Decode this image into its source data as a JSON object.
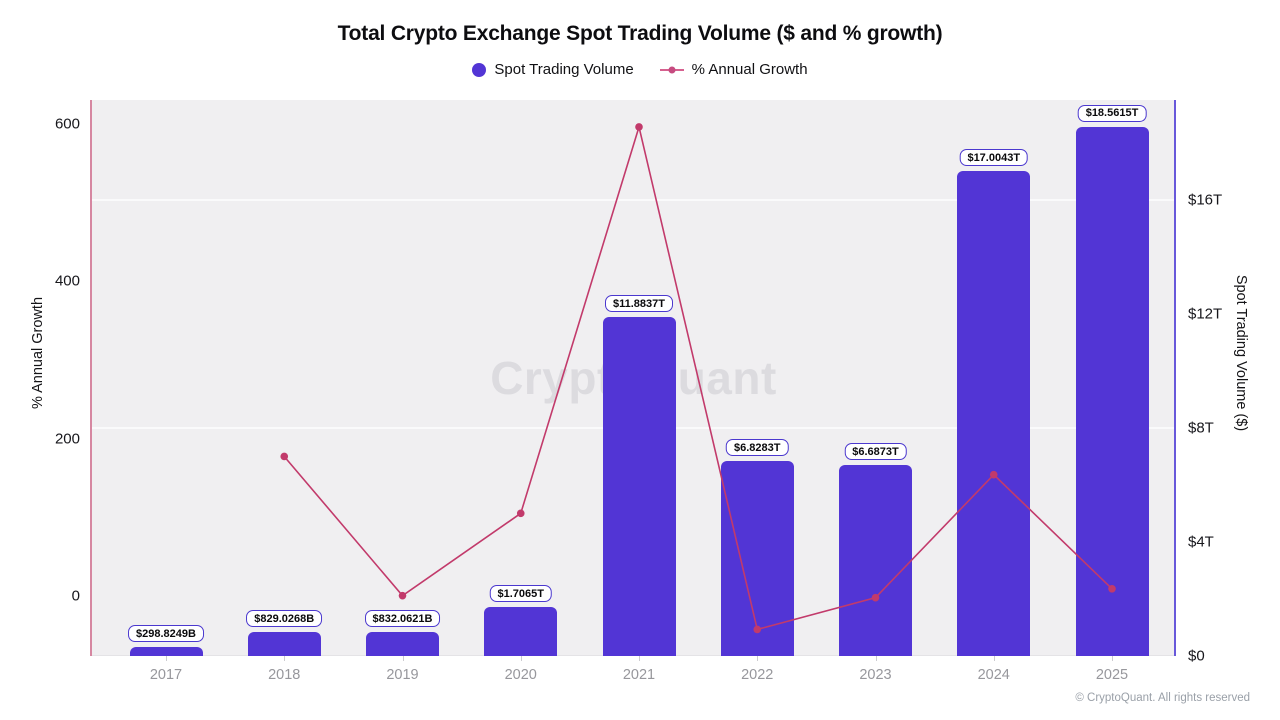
{
  "watermark": "CryptoQuant",
  "footer": "© CryptoQuant. All rights reserved",
  "colors": {
    "bar": "#5235d5",
    "bar_label_border": "#4b38cf",
    "line": "#c23a6b",
    "legend_line": "#d6618f",
    "legend_marker": "#c64b80",
    "left_spine": "#d687a1",
    "right_spine": "#6858da",
    "plot_bg": "#f0eff1",
    "gridline": "#fafafb",
    "watermark_text": "#dcdbdf"
  },
  "chart_data": {
    "type": "combo_bar_line",
    "title": "Total Crypto Exchange Spot Trading Volume ($ and % growth)",
    "categories": [
      "2017",
      "2018",
      "2019",
      "2020",
      "2021",
      "2022",
      "2023",
      "2024",
      "2025"
    ],
    "series": [
      {
        "name": "Spot Trading Volume",
        "type": "bar",
        "axis": "right",
        "unit": "trillion USD",
        "values": [
          0.2988249,
          0.8290268,
          0.8320621,
          1.7065,
          11.8837,
          6.8283,
          6.6873,
          17.0043,
          18.5615
        ],
        "labels": [
          "$298.8249B",
          "$829.0268B",
          "$832.0621B",
          "$1.7065T",
          "$11.8837T",
          "$6.8283T",
          "$6.6873T",
          "$17.0043T",
          "$18.5615T"
        ],
        "color": "#5235d5"
      },
      {
        "name": "% Annual Growth",
        "type": "line",
        "axis": "left",
        "unit": "percent",
        "values": [
          null,
          177.4,
          0.4,
          105.1,
          596.4,
          -42.5,
          -2.1,
          154.3,
          9.2
        ],
        "color": "#c23a6b"
      }
    ],
    "left_axis": {
      "label": "% Annual Growth",
      "ticks": [
        0,
        200,
        400,
        600
      ]
    },
    "right_axis": {
      "label": "Spot Trading Volume ($)",
      "tick_values": [
        0,
        4,
        8,
        12,
        16
      ],
      "tick_labels": [
        "$0",
        "$4T",
        "$8T",
        "$12T",
        "$16T"
      ],
      "gridlines": [
        8,
        16
      ]
    },
    "legend_position": "top",
    "grid": "subtle horizontal"
  }
}
